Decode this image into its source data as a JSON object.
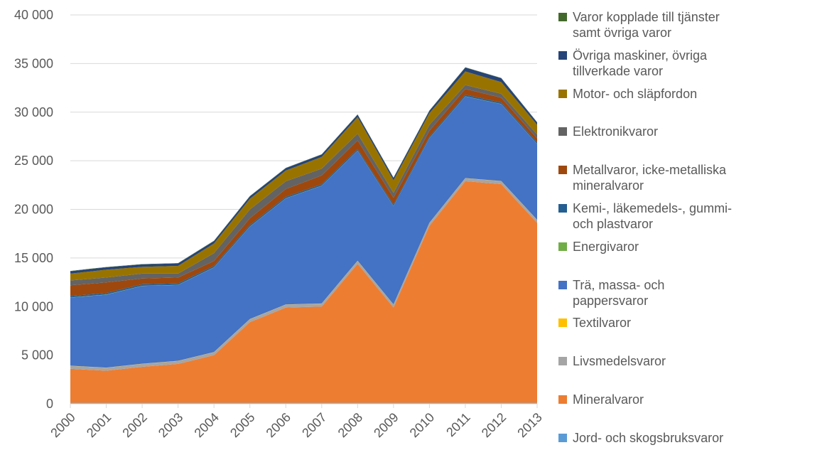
{
  "chart_data": {
    "type": "stacked_area",
    "categories": [
      "2000",
      "2001",
      "2002",
      "2003",
      "2004",
      "2005",
      "2006",
      "2007",
      "2008",
      "2009",
      "2010",
      "2011",
      "2012",
      "2013"
    ],
    "ylim": [
      0,
      40000
    ],
    "yticks": [
      0,
      {
        "value": 5000,
        "label": "5 000"
      },
      {
        "value": 10000,
        "label": "10 000"
      },
      {
        "value": 15000,
        "label": "15 000"
      },
      {
        "value": 20000,
        "label": "20 000"
      },
      {
        "value": 25000,
        "label": "25 000"
      },
      {
        "value": 30000,
        "label": "30 000"
      },
      {
        "value": 35000,
        "label": "35 000"
      },
      {
        "value": 40000,
        "label": "40 000"
      }
    ],
    "grid": true,
    "series": [
      {
        "name": "Jord- och skogsbruksvaror",
        "color": "#5b9bd5",
        "values": [
          100,
          100,
          100,
          100,
          100,
          100,
          100,
          100,
          100,
          100,
          100,
          100,
          100,
          100
        ]
      },
      {
        "name": "Mineralvaror",
        "color": "#ed7d31",
        "values": [
          3500,
          3300,
          3700,
          4000,
          4900,
          8300,
          9800,
          9900,
          14300,
          9800,
          18200,
          22800,
          22500,
          18500
        ]
      },
      {
        "name": "Livsmedelsvaror",
        "color": "#a5a5a5",
        "values": [
          300,
          300,
          300,
          300,
          300,
          300,
          300,
          300,
          300,
          300,
          300,
          300,
          300,
          300
        ]
      },
      {
        "name": "Textilvaror",
        "color": "#ffc000",
        "values": [
          20,
          20,
          20,
          20,
          20,
          20,
          20,
          20,
          20,
          20,
          20,
          20,
          20,
          20
        ]
      },
      {
        "name": "Trä, massa- och pappersvaror",
        "color": "#4472c4",
        "values": [
          7000,
          7500,
          8000,
          7800,
          8700,
          9500,
          10900,
          12100,
          11300,
          10100,
          8700,
          8400,
          7900,
          7800
        ]
      },
      {
        "name": "Energivaror",
        "color": "#70ad47",
        "values": [
          20,
          20,
          20,
          20,
          20,
          20,
          20,
          20,
          20,
          20,
          20,
          20,
          20,
          20
        ]
      },
      {
        "name": "Kemi-, läkemedels-, gummi- och plastvaror",
        "color": "#255e91",
        "values": [
          150,
          150,
          150,
          150,
          150,
          150,
          150,
          150,
          150,
          150,
          150,
          150,
          150,
          150
        ]
      },
      {
        "name": "Metallvaror, icke-metalliska mineralvaror",
        "color": "#9e480e",
        "values": [
          1100,
          1100,
          600,
          600,
          500,
          700,
          800,
          900,
          900,
          700,
          600,
          600,
          500,
          400
        ]
      },
      {
        "name": "Elektronikvaror",
        "color": "#636363",
        "values": [
          500,
          500,
          500,
          400,
          800,
          900,
          800,
          700,
          700,
          500,
          600,
          400,
          400,
          400
        ]
      },
      {
        "name": "Motor- och släpfordon",
        "color": "#997300",
        "values": [
          700,
          800,
          700,
          800,
          1000,
          1100,
          1100,
          1200,
          1700,
          1300,
          1200,
          1400,
          1200,
          1000
        ]
      },
      {
        "name": "Övriga maskiner, övriga tillverkade varor",
        "color": "#264478",
        "values": [
          250,
          250,
          250,
          250,
          250,
          250,
          250,
          250,
          250,
          250,
          250,
          400,
          400,
          250
        ]
      },
      {
        "name": "Varor kopplade till tjänster samt övriga varor",
        "color": "#43682b",
        "values": [
          30,
          30,
          30,
          30,
          30,
          30,
          30,
          30,
          30,
          30,
          30,
          30,
          30,
          30
        ]
      }
    ]
  }
}
